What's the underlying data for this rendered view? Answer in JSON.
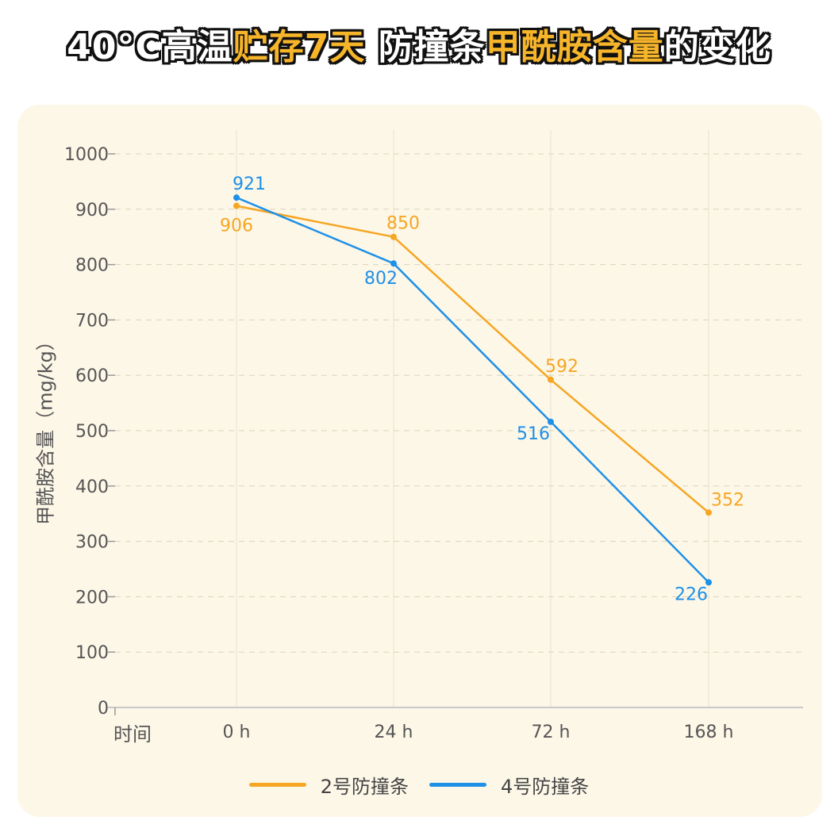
{
  "title": {
    "parts": [
      {
        "text": "40°C高温",
        "highlight": false
      },
      {
        "text": "贮存7天",
        "highlight": true
      },
      {
        "text": " 防撞条",
        "highlight": false
      },
      {
        "text": "甲酰胺含量",
        "highlight": true
      },
      {
        "text": "的变化",
        "highlight": false
      }
    ]
  },
  "colors": {
    "series_2": "#f5a623",
    "series_4": "#1e90e8",
    "panel_bg": "#fdf7e8",
    "title_highlight": "#f7b52a"
  },
  "chart_data": {
    "type": "line",
    "ylabel": "甲酰胺含量（mg/kg）",
    "xlabel": "时间",
    "categories": [
      "0 h",
      "24 h",
      "72 h",
      "168 h"
    ],
    "ylim": [
      0,
      1000
    ],
    "yticks": [
      0,
      100,
      200,
      300,
      400,
      500,
      600,
      700,
      800,
      900,
      1000
    ],
    "grid": true,
    "legend_position": "bottom",
    "series": [
      {
        "name": "2号防撞条",
        "values": [
          906,
          850,
          592,
          352
        ],
        "color": "#f5a623"
      },
      {
        "name": "4号防撞条",
        "values": [
          921,
          802,
          516,
          226
        ],
        "color": "#1e90e8"
      }
    ]
  }
}
